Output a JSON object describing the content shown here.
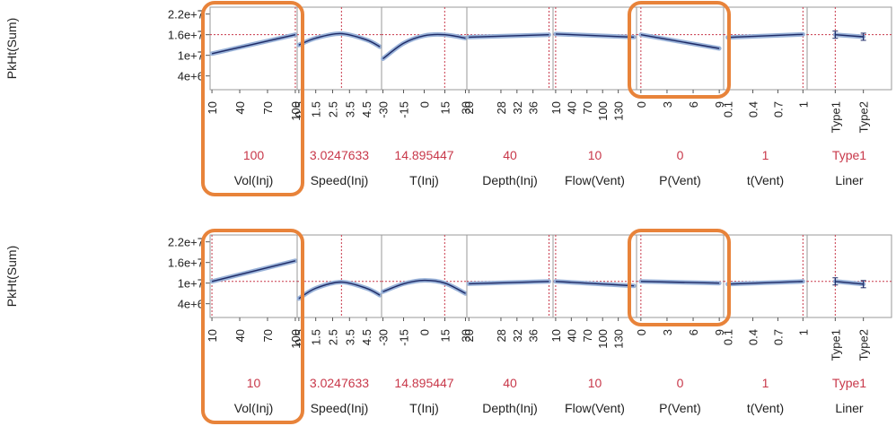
{
  "colors": {
    "curve": "#1e2a66",
    "band": "#9ab3d9",
    "reference": "#c8384a",
    "highlight": "#e8833a",
    "frame": "#9a9a9a"
  },
  "chart_data": {
    "type": "line",
    "y_axis": {
      "label": "PkHt(Sum)",
      "tick_labels": [
        "2.2e+7",
        "1.6e+7",
        "1e+7",
        "4e+6"
      ],
      "tick_values": [
        22000000,
        16000000,
        10000000,
        4000000
      ],
      "range": [
        0,
        24000000
      ]
    },
    "factors": [
      {
        "name": "Vol(Inj)",
        "range": [
          8,
          102
        ],
        "ticks": [
          "10",
          "40",
          "70",
          "100"
        ],
        "tick_values": [
          10,
          40,
          70,
          100
        ]
      },
      {
        "name": "Speed(Inj)",
        "range": [
          0.4,
          5.4
        ],
        "ticks": [
          "0.5",
          "1.5",
          "2.5",
          "3.5",
          "4.5"
        ],
        "tick_values": [
          0.5,
          1.5,
          2.5,
          3.5,
          4.5
        ]
      },
      {
        "name": "T(Inj)",
        "range": [
          -31,
          31
        ],
        "ticks": [
          "-30",
          "-15",
          "0",
          "15",
          "30"
        ],
        "tick_values": [
          -30,
          -15,
          0,
          15,
          30
        ]
      },
      {
        "name": "Depth(Inj)",
        "range": [
          19.5,
          41
        ],
        "ticks": [
          "20",
          "28",
          "32",
          "36"
        ],
        "tick_values": [
          20,
          28,
          32,
          36
        ]
      },
      {
        "name": "Flow(Vent)",
        "range": [
          5,
          165
        ],
        "ticks": [
          "10",
          "40",
          "70",
          "100",
          "130"
        ],
        "tick_values": [
          10,
          40,
          70,
          100,
          130
        ]
      },
      {
        "name": "P(Vent)",
        "range": [
          -0.5,
          9.5
        ],
        "ticks": [
          "0",
          "3",
          "6",
          "9"
        ],
        "tick_values": [
          0,
          3,
          6,
          9
        ]
      },
      {
        "name": "t(Vent)",
        "range": [
          0.05,
          1.05
        ],
        "ticks": [
          "0.1",
          "0.4",
          "0.7",
          "1"
        ],
        "tick_values": [
          0.1,
          0.4,
          0.7,
          1.0
        ]
      },
      {
        "name": "Liner",
        "range": [
          0,
          3
        ],
        "ticks": [
          "Type1",
          "Type2"
        ],
        "tick_values": [
          1,
          2
        ],
        "categorical": true
      }
    ],
    "panels": [
      {
        "predicted": 16000000,
        "current": [
          "100",
          "3.0247633",
          "14.895447",
          "40",
          "10",
          "0",
          "1",
          "Type1"
        ],
        "current_values": [
          100,
          3.0247633,
          14.895447,
          40,
          10,
          0,
          1,
          1
        ],
        "highlighted": [
          "Vol(Inj)",
          "P(Vent)"
        ],
        "profiles": [
          [
            [
              10,
              10500000
            ],
            [
              100,
              16000000
            ]
          ],
          [
            [
              0.5,
              13000000
            ],
            [
              1.5,
              15000000
            ],
            [
              3.0,
              16300000
            ],
            [
              4.5,
              14500000
            ],
            [
              5.3,
              12500000
            ]
          ],
          [
            [
              -30,
              9000000
            ],
            [
              -15,
              13500000
            ],
            [
              0,
              15700000
            ],
            [
              15,
              16000000
            ],
            [
              30,
              15000000
            ]
          ],
          [
            [
              20,
              15300000
            ],
            [
              40,
              16000000
            ]
          ],
          [
            [
              10,
              16200000
            ],
            [
              160,
              15300000
            ]
          ],
          [
            [
              0,
              16000000
            ],
            [
              9,
              12000000
            ]
          ],
          [
            [
              0.1,
              15200000
            ],
            [
              1.0,
              16100000
            ]
          ],
          [
            [
              1,
              16000000
            ],
            [
              2,
              15400000
            ]
          ]
        ]
      },
      {
        "predicted": 10500000,
        "current": [
          "10",
          "3.0247633",
          "14.895447",
          "40",
          "10",
          "0",
          "1",
          "Type1"
        ],
        "current_values": [
          10,
          3.0247633,
          14.895447,
          40,
          10,
          0,
          1,
          1
        ],
        "highlighted": [
          "Vol(Inj)",
          "P(Vent)"
        ],
        "profiles": [
          [
            [
              10,
              10500000
            ],
            [
              100,
              16500000
            ]
          ],
          [
            [
              0.5,
              5500000
            ],
            [
              1.5,
              8500000
            ],
            [
              3.0,
              10300000
            ],
            [
              4.5,
              8500000
            ],
            [
              5.3,
              6500000
            ]
          ],
          [
            [
              -30,
              7500000
            ],
            [
              -15,
              9800000
            ],
            [
              0,
              10800000
            ],
            [
              15,
              10000000
            ],
            [
              30,
              7000000
            ]
          ],
          [
            [
              20,
              9800000
            ],
            [
              40,
              10500000
            ]
          ],
          [
            [
              10,
              10500000
            ],
            [
              160,
              9200000
            ]
          ],
          [
            [
              0,
              10500000
            ],
            [
              9,
              10000000
            ]
          ],
          [
            [
              0.1,
              9700000
            ],
            [
              1.0,
              10500000
            ]
          ],
          [
            [
              1,
              10500000
            ],
            [
              2,
              9700000
            ]
          ]
        ]
      }
    ]
  }
}
